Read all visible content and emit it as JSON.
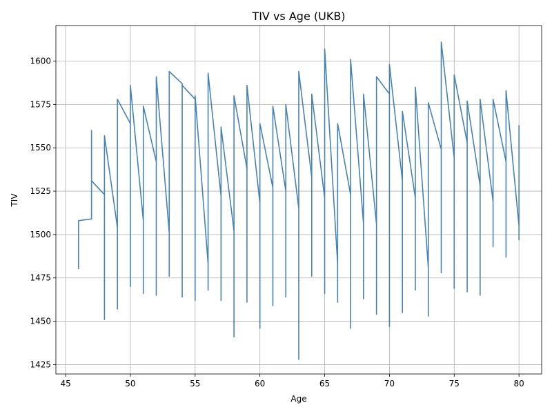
{
  "chart_data": {
    "type": "line",
    "title": "TIV vs Age (UKB)",
    "xlabel": "Age",
    "ylabel": "TIV",
    "xlim": [
      44.25,
      81.75
    ],
    "ylim": [
      1419.6,
      1620.5
    ],
    "xticks": [
      45,
      50,
      55,
      60,
      65,
      70,
      75,
      80
    ],
    "yticks": [
      1425,
      1450,
      1475,
      1500,
      1525,
      1550,
      1575,
      1600
    ],
    "grid": true,
    "line_color": "#4682b4",
    "series": [
      {
        "x": [
          46,
          46,
          47,
          47,
          47,
          48,
          48,
          48,
          49,
          49,
          49,
          50,
          50,
          50,
          51,
          51,
          51,
          52,
          52,
          52,
          53,
          53,
          53,
          54,
          54,
          54,
          55,
          55,
          55,
          56,
          56,
          56,
          57,
          57,
          57,
          58,
          58,
          58,
          59,
          59,
          59,
          60,
          60,
          60,
          61,
          61,
          61,
          62,
          62,
          62,
          63,
          63,
          63,
          64,
          64,
          64,
          65,
          65,
          65,
          66,
          66,
          66,
          67,
          67,
          67,
          68,
          68,
          68,
          69,
          69,
          69,
          70,
          70,
          70,
          71,
          71,
          71,
          72,
          72,
          72,
          73,
          73,
          73,
          74,
          74,
          74,
          75,
          75,
          75,
          76,
          76,
          76,
          77,
          77,
          77,
          78,
          78,
          78,
          79,
          79,
          79,
          80,
          80,
          80
        ],
        "y": [
          1480,
          1508,
          1509,
          1560,
          1531,
          1523,
          1451,
          1557,
          1504,
          1457,
          1578,
          1564,
          1470,
          1586,
          1508,
          1466,
          1574,
          1542,
          1465,
          1591,
          1501,
          1476,
          1594,
          1587,
          1464,
          1586,
          1578,
          1462,
          1580,
          1483,
          1468,
          1593,
          1522,
          1462,
          1562,
          1502,
          1441,
          1580,
          1538,
          1461,
          1586,
          1518,
          1446,
          1564,
          1527,
          1459,
          1574,
          1525,
          1464,
          1575,
          1515,
          1428,
          1594,
          1533,
          1476,
          1581,
          1521,
          1466,
          1607,
          1483,
          1461,
          1564,
          1523,
          1446,
          1601,
          1506,
          1463,
          1581,
          1506,
          1454,
          1591,
          1581,
          1447,
          1598,
          1531,
          1455,
          1571,
          1521,
          1468,
          1585,
          1481,
          1453,
          1576,
          1549,
          1478,
          1611,
          1544,
          1469,
          1592,
          1553,
          1467,
          1577,
          1528,
          1465,
          1578,
          1519,
          1493,
          1578,
          1542,
          1487,
          1583,
          1505,
          1497,
          1563
        ]
      }
    ]
  }
}
